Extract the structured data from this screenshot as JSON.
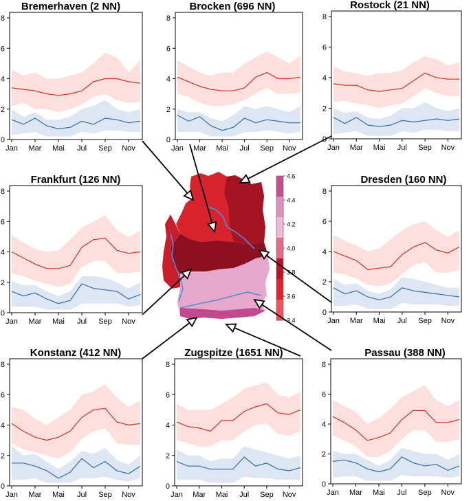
{
  "colors": {
    "red_line": "#d7301f",
    "red_band": "#fde0dd",
    "blue_line": "#2c6fb0",
    "blue_band": "#dde6f2",
    "axis": "#000000",
    "arrow": "#000000"
  },
  "month_labels": [
    "Jan",
    "Mar",
    "Mai",
    "Jul",
    "Sep",
    "Nov"
  ],
  "y_ticks": [
    "0",
    "2",
    "4",
    "6",
    "8"
  ],
  "colorbar": {
    "ticks": [
      "4.6",
      "4.4",
      "4.2",
      "4.0",
      "3.8",
      "3.6",
      "3.4"
    ],
    "colors": [
      "#c4508f",
      "#df8fbd",
      "#eeb8d6",
      "#e66b8a",
      "#bd1428",
      "#e0252f",
      "#f0555a"
    ]
  },
  "chart_data": [
    {
      "type": "line",
      "title": "Bremerhaven (2 NN)",
      "ylim": [
        0,
        8
      ],
      "x": [
        "Jan",
        "Feb",
        "Mar",
        "Apr",
        "Mai",
        "Jun",
        "Jul",
        "Aug",
        "Sep",
        "Okt",
        "Nov",
        "Dez"
      ],
      "series": [
        {
          "color": "red",
          "values": [
            3.4,
            3.3,
            3.2,
            3.0,
            2.9,
            3.0,
            3.2,
            3.8,
            4.0,
            4.0,
            3.8,
            3.7
          ],
          "lower": [
            2.2,
            2.4,
            2.0,
            2.0,
            1.8,
            2.0,
            2.3,
            2.8,
            3.0,
            2.6,
            2.4,
            2.5
          ],
          "upper": [
            4.6,
            4.2,
            4.4,
            4.0,
            4.0,
            4.2,
            4.4,
            5.0,
            5.7,
            5.4,
            4.4,
            5.2
          ]
        },
        {
          "color": "blue",
          "values": [
            1.3,
            1.0,
            1.4,
            0.9,
            0.7,
            0.8,
            1.2,
            1.0,
            1.4,
            1.3,
            1.1,
            1.2
          ],
          "lower": [
            0.3,
            0.4,
            0.5,
            0.2,
            0.2,
            0.2,
            0.5,
            0.4,
            0.6,
            0.6,
            0.5,
            0.5
          ],
          "upper": [
            2.0,
            1.5,
            1.8,
            1.3,
            1.3,
            1.5,
            2.0,
            2.2,
            2.6,
            2.0,
            1.8,
            2.0
          ]
        }
      ]
    },
    {
      "type": "line",
      "title": "Brocken (696 NN)",
      "ylim": [
        0,
        8
      ],
      "x": [
        "Jan",
        "Feb",
        "Mar",
        "Apr",
        "Mai",
        "Jun",
        "Jul",
        "Aug",
        "Sep",
        "Okt",
        "Nov",
        "Dez"
      ],
      "series": [
        {
          "color": "red",
          "values": [
            4.1,
            3.8,
            3.5,
            3.3,
            3.2,
            3.2,
            3.4,
            4.1,
            4.4,
            4.0,
            4.0,
            4.1
          ],
          "lower": [
            3.0,
            2.8,
            2.4,
            2.2,
            2.2,
            2.3,
            2.6,
            3.0,
            3.4,
            3.0,
            3.0,
            3.1
          ],
          "upper": [
            5.2,
            4.8,
            4.4,
            4.2,
            4.4,
            4.4,
            5.0,
            5.4,
            5.8,
            5.4,
            5.0,
            5.5
          ]
        },
        {
          "color": "blue",
          "values": [
            1.6,
            1.2,
            1.5,
            0.9,
            0.6,
            0.8,
            1.4,
            1.1,
            1.3,
            1.2,
            1.1,
            1.1
          ],
          "lower": [
            0.5,
            0.5,
            0.5,
            0.2,
            0.2,
            0.2,
            0.5,
            0.5,
            0.6,
            0.5,
            0.4,
            0.5
          ],
          "upper": [
            2.0,
            1.8,
            1.8,
            1.4,
            1.2,
            1.6,
            2.2,
            2.0,
            2.2,
            2.0,
            1.8,
            2.2
          ]
        }
      ]
    },
    {
      "type": "line",
      "title": "Rostock (21 NN)",
      "ylim": [
        0,
        8
      ],
      "x": [
        "Jan",
        "Feb",
        "Mar",
        "Apr",
        "Mai",
        "Jun",
        "Jul",
        "Aug",
        "Sep",
        "Okt",
        "Nov",
        "Dez"
      ],
      "series": [
        {
          "color": "red",
          "values": [
            3.6,
            3.5,
            3.5,
            3.2,
            3.1,
            3.2,
            3.3,
            3.8,
            4.3,
            4.0,
            3.9,
            3.9
          ],
          "lower": [
            2.4,
            2.5,
            2.3,
            2.2,
            2.0,
            2.2,
            2.3,
            2.8,
            3.3,
            3.0,
            2.8,
            2.8
          ],
          "upper": [
            4.7,
            4.4,
            4.3,
            4.1,
            4.3,
            4.3,
            4.5,
            5.0,
            5.4,
            5.2,
            4.8,
            5.0
          ]
        },
        {
          "color": "blue",
          "values": [
            1.4,
            1.0,
            1.4,
            0.9,
            0.8,
            0.9,
            1.2,
            1.1,
            1.2,
            1.3,
            1.2,
            1.3
          ],
          "lower": [
            0.3,
            0.4,
            0.5,
            0.2,
            0.2,
            0.2,
            0.5,
            0.4,
            0.6,
            0.6,
            0.5,
            0.5
          ],
          "upper": [
            2.0,
            1.7,
            1.8,
            1.4,
            1.3,
            1.5,
            2.0,
            2.0,
            2.4,
            2.0,
            1.8,
            2.0
          ]
        }
      ]
    },
    {
      "type": "line",
      "title": "Frankfurt (126 NN)",
      "ylim": [
        0,
        8
      ],
      "x": [
        "Jan",
        "Feb",
        "Mar",
        "Apr",
        "Mai",
        "Jun",
        "Jul",
        "Aug",
        "Sep",
        "Okt",
        "Nov",
        "Dez"
      ],
      "series": [
        {
          "color": "red",
          "values": [
            4.0,
            3.6,
            3.2,
            2.9,
            2.9,
            3.1,
            4.3,
            4.8,
            4.9,
            4.1,
            3.9,
            4.0
          ],
          "lower": [
            2.6,
            2.4,
            2.1,
            1.9,
            1.7,
            1.9,
            3.0,
            3.4,
            3.4,
            2.6,
            2.6,
            2.7
          ],
          "upper": [
            5.1,
            4.6,
            4.2,
            4.0,
            4.1,
            4.8,
            5.6,
            6.0,
            6.4,
            5.4,
            5.0,
            5.4
          ]
        },
        {
          "color": "blue",
          "values": [
            1.4,
            1.1,
            1.3,
            0.9,
            0.6,
            0.8,
            1.9,
            1.6,
            1.5,
            1.4,
            0.9,
            1.2
          ],
          "lower": [
            0.4,
            0.4,
            0.4,
            0.2,
            0.2,
            0.2,
            0.6,
            0.6,
            0.6,
            0.6,
            0.4,
            0.5
          ],
          "upper": [
            2.1,
            1.8,
            1.8,
            1.4,
            1.1,
            1.4,
            2.4,
            2.4,
            2.3,
            2.0,
            1.6,
            2.0
          ]
        }
      ]
    },
    {
      "type": "line",
      "title": "Dresden (160 NN)",
      "ylim": [
        0,
        8
      ],
      "x": [
        "Jan",
        "Feb",
        "Mar",
        "Apr",
        "Mai",
        "Jun",
        "Jul",
        "Aug",
        "Sep",
        "Okt",
        "Nov",
        "Dez"
      ],
      "series": [
        {
          "color": "red",
          "values": [
            4.0,
            3.7,
            3.4,
            2.8,
            2.9,
            3.0,
            3.8,
            4.3,
            4.6,
            4.1,
            3.9,
            4.3
          ],
          "lower": [
            2.6,
            2.5,
            2.2,
            1.8,
            1.7,
            1.9,
            2.5,
            3.1,
            3.3,
            2.6,
            2.6,
            2.8
          ],
          "upper": [
            5.1,
            4.7,
            4.4,
            4.0,
            4.2,
            4.8,
            5.4,
            5.8,
            6.0,
            5.4,
            5.0,
            5.4
          ]
        },
        {
          "color": "blue",
          "values": [
            1.6,
            1.2,
            1.4,
            1.0,
            0.8,
            1.0,
            1.6,
            1.4,
            1.3,
            1.2,
            1.1,
            1.0
          ],
          "lower": [
            0.4,
            0.4,
            0.5,
            0.2,
            0.2,
            0.2,
            0.6,
            0.5,
            0.5,
            0.5,
            0.4,
            0.4
          ],
          "upper": [
            2.2,
            1.8,
            1.9,
            1.4,
            1.2,
            1.5,
            2.3,
            2.2,
            2.0,
            1.8,
            1.6,
            1.6
          ]
        }
      ]
    },
    {
      "type": "line",
      "title": "Konstanz (412 NN)",
      "ylim": [
        0,
        8
      ],
      "x": [
        "Jan",
        "Feb",
        "Mar",
        "Apr",
        "Mai",
        "Jun",
        "Jul",
        "Aug",
        "Sep",
        "Okt",
        "Nov",
        "Dez"
      ],
      "series": [
        {
          "color": "red",
          "values": [
            4.1,
            3.6,
            3.2,
            3.0,
            3.2,
            3.6,
            4.5,
            5.0,
            5.1,
            4.2,
            4.0,
            4.1
          ],
          "lower": [
            2.8,
            2.4,
            2.2,
            2.0,
            1.8,
            2.2,
            3.1,
            3.6,
            3.8,
            2.8,
            2.7,
            2.7
          ],
          "upper": [
            5.2,
            5.0,
            4.4,
            4.0,
            4.5,
            5.0,
            6.0,
            6.2,
            6.7,
            5.8,
            5.2,
            5.6
          ]
        },
        {
          "color": "blue",
          "values": [
            1.5,
            1.5,
            1.3,
            1.0,
            0.5,
            0.9,
            1.8,
            1.2,
            1.6,
            1.0,
            0.8,
            1.3
          ],
          "lower": [
            0.4,
            0.4,
            0.5,
            0.2,
            0.2,
            0.2,
            0.5,
            0.5,
            0.6,
            0.4,
            0.3,
            0.5
          ],
          "upper": [
            2.6,
            2.0,
            2.1,
            1.6,
            1.1,
            1.6,
            2.3,
            2.1,
            2.5,
            1.7,
            1.4,
            2.0
          ]
        }
      ]
    },
    {
      "type": "line",
      "title": "Zugspitze (1651 NN)",
      "ylim": [
        0,
        8
      ],
      "x": [
        "Jan",
        "Feb",
        "Mar",
        "Apr",
        "Mai",
        "Jun",
        "Jul",
        "Aug",
        "Sep",
        "Okt",
        "Nov",
        "Dez"
      ],
      "series": [
        {
          "color": "red",
          "values": [
            4.2,
            3.9,
            3.8,
            3.6,
            4.3,
            4.3,
            4.9,
            5.2,
            5.4,
            4.8,
            4.7,
            5.0
          ],
          "lower": [
            3.0,
            2.8,
            2.6,
            2.6,
            3.0,
            3.0,
            3.6,
            4.0,
            4.1,
            3.4,
            3.3,
            3.6
          ],
          "upper": [
            5.4,
            5.0,
            5.0,
            5.0,
            5.4,
            5.8,
            6.4,
            6.6,
            6.8,
            6.0,
            5.8,
            6.2
          ]
        },
        {
          "color": "blue",
          "values": [
            1.6,
            1.3,
            1.3,
            1.1,
            1.1,
            1.1,
            1.9,
            1.3,
            1.5,
            1.1,
            1.0,
            1.2
          ],
          "lower": [
            0.4,
            0.4,
            0.4,
            0.2,
            0.2,
            0.2,
            0.6,
            0.5,
            0.5,
            0.4,
            0.4,
            0.4
          ],
          "upper": [
            2.4,
            2.0,
            2.0,
            1.6,
            1.8,
            1.8,
            2.6,
            2.4,
            2.2,
            2.0,
            1.8,
            2.0
          ]
        }
      ]
    },
    {
      "type": "line",
      "title": "Passau (388 NN)",
      "ylim": [
        0,
        8
      ],
      "x": [
        "Jan",
        "Feb",
        "Mar",
        "Apr",
        "Mai",
        "Jun",
        "Jul",
        "Aug",
        "Sep",
        "Okt",
        "Nov",
        "Dez"
      ],
      "series": [
        {
          "color": "red",
          "values": [
            4.5,
            4.1,
            3.6,
            2.9,
            3.1,
            3.4,
            4.3,
            4.9,
            4.9,
            4.1,
            4.1,
            4.3
          ],
          "lower": [
            3.2,
            2.9,
            2.5,
            1.8,
            1.8,
            2.2,
            3.0,
            3.6,
            3.6,
            2.8,
            2.8,
            3.0
          ],
          "upper": [
            5.6,
            5.2,
            4.8,
            4.0,
            4.4,
            5.0,
            5.8,
            6.2,
            6.6,
            5.6,
            5.2,
            5.6
          ]
        },
        {
          "color": "blue",
          "values": [
            1.5,
            1.6,
            1.4,
            1.0,
            0.8,
            1.0,
            1.8,
            1.4,
            1.2,
            1.3,
            0.9,
            1.2
          ],
          "lower": [
            0.4,
            0.5,
            0.5,
            0.2,
            0.2,
            0.2,
            0.6,
            0.5,
            0.5,
            0.5,
            0.4,
            0.5
          ],
          "upper": [
            2.2,
            2.0,
            2.0,
            1.6,
            1.2,
            1.6,
            2.4,
            2.2,
            2.0,
            2.0,
            1.6,
            2.0
          ]
        }
      ]
    }
  ]
}
